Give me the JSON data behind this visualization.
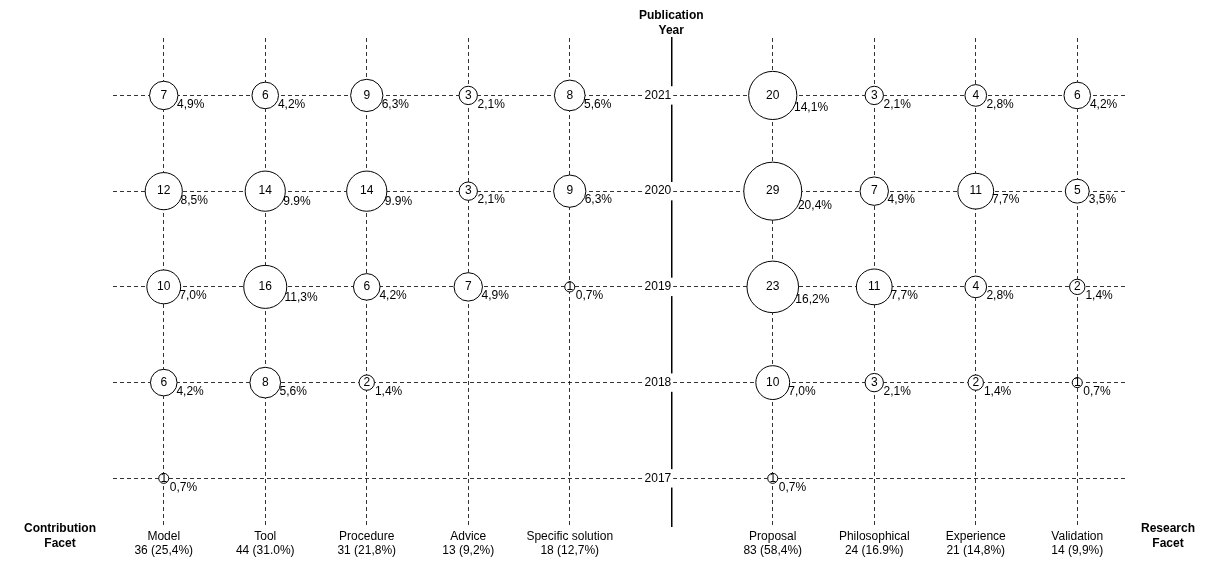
{
  "chart_data": {
    "type": "bubble",
    "xlabel": "Contribution Facet",
    "ylabel": "Publication Year",
    "categories": [
      "Model",
      "Tool",
      "Procedure",
      "Advice",
      "Specific solution",
      null,
      "Proposal",
      "Philosophical",
      "Experience",
      "Validation"
    ],
    "totals": [
      "36 (25,4%)",
      "44 (31.0%)",
      "31 (21,8%)",
      "13 (9,2%)",
      "18 (12,7%)",
      null,
      "83 (58,4%)",
      "24 (16.9%)",
      "21 (14,8%)",
      "14 (9,9%)"
    ],
    "ylim": [
      2016.5,
      2021.6
    ],
    "yticks": [
      2017,
      2018,
      2019,
      2020,
      2021
    ],
    "grid": true,
    "line_style": "dashed",
    "series": [
      {
        "color": "#000000",
        "x": [
          "Model",
          "Model",
          "Model",
          "Model",
          "Model",
          "Tool",
          "Tool",
          "Tool",
          "Tool",
          "Procedure",
          "Procedure",
          "Procedure",
          "Procedure",
          "Advice",
          "Advice",
          "Advice",
          "Specific solution",
          "Specific solution",
          "Specific solution",
          "Proposal",
          "Proposal",
          "Proposal",
          "Proposal",
          "Proposal",
          "Philosophical",
          "Philosophical",
          "Philosophical",
          "Philosophical",
          "Experience",
          "Experience",
          "Experience",
          "Experience",
          "Validation",
          "Validation",
          "Validation",
          "Validation"
        ],
        "values": [
          2021,
          2020,
          2019,
          2018,
          2017,
          2021,
          2020,
          2019,
          2018,
          2021,
          2020,
          2019,
          2018,
          2021,
          2020,
          2019,
          2021,
          2020,
          2019,
          2021,
          2020,
          2019,
          2018,
          2017,
          2021,
          2020,
          2019,
          2018,
          2021,
          2020,
          2019,
          2018,
          2021,
          2020,
          2019,
          2018
        ],
        "sizes": [
          0.24,
          0.41,
          0.34,
          0.21,
          0.03,
          0.21,
          0.48,
          0.55,
          0.28,
          0.31,
          0.48,
          0.21,
          0.07,
          0.1,
          0.1,
          0.24,
          0.28,
          0.31,
          0.03,
          0.69,
          1,
          0.79,
          0.34,
          0.03,
          0.1,
          0.24,
          0.38,
          0.1,
          0.14,
          0.38,
          0.14,
          0.07,
          0.21,
          0.17,
          0.07,
          0.03
        ]
      }
    ],
    "annotations": [
      "Research Facet",
      {
        "text": "7",
        "x": "Model",
        "y": 2021
      },
      {
        "text": "4,9%",
        "x": "Model",
        "y": 2021
      },
      {
        "text": "12",
        "x": "Model",
        "y": 2020
      },
      {
        "text": "8,5%",
        "x": "Model",
        "y": 2020
      },
      {
        "text": "10",
        "x": "Model",
        "y": 2019
      },
      {
        "text": "7,0%",
        "x": "Model",
        "y": 2019
      },
      {
        "text": "6",
        "x": "Model",
        "y": 2018
      },
      {
        "text": "4,2%",
        "x": "Model",
        "y": 2018
      },
      {
        "text": "1",
        "x": "Model",
        "y": 2017
      },
      {
        "text": "0,7%",
        "x": "Model",
        "y": 2017
      },
      {
        "text": "6",
        "x": "Tool",
        "y": 2021
      },
      {
        "text": "4,2%",
        "x": "Tool",
        "y": 2021
      },
      {
        "text": "14",
        "x": "Tool",
        "y": 2020
      },
      {
        "text": "9.9%",
        "x": "Tool",
        "y": 2020
      },
      {
        "text": "16",
        "x": "Tool",
        "y": 2019
      },
      {
        "text": "11,3%",
        "x": "Tool",
        "y": 2019
      },
      {
        "text": "8",
        "x": "Tool",
        "y": 2018
      },
      {
        "text": "5,6%",
        "x": "Tool",
        "y": 2018
      },
      {
        "text": "9",
        "x": "Procedure",
        "y": 2021
      },
      {
        "text": "6,3%",
        "x": "Procedure",
        "y": 2021
      },
      {
        "text": "14",
        "x": "Procedure",
        "y": 2020
      },
      {
        "text": "9.9%",
        "x": "Procedure",
        "y": 2020
      },
      {
        "text": "6",
        "x": "Procedure",
        "y": 2019
      },
      {
        "text": "4,2%",
        "x": "Procedure",
        "y": 2019
      },
      {
        "text": "2",
        "x": "Procedure",
        "y": 2018
      },
      {
        "text": "1,4%",
        "x": "Procedure",
        "y": 2018
      },
      {
        "text": "3",
        "x": "Advice",
        "y": 2021
      },
      {
        "text": "2,1%",
        "x": "Advice",
        "y": 2021
      },
      {
        "text": "3",
        "x": "Advice",
        "y": 2020
      },
      {
        "text": "2,1%",
        "x": "Advice",
        "y": 2020
      },
      {
        "text": "7",
        "x": "Advice",
        "y": 2019
      },
      {
        "text": "4,9%",
        "x": "Advice",
        "y": 2019
      },
      {
        "text": "8",
        "x": "Specific solution",
        "y": 2021
      },
      {
        "text": "5,6%",
        "x": "Specific solution",
        "y": 2021
      },
      {
        "text": "9",
        "x": "Specific solution",
        "y": 2020
      },
      {
        "text": "6,3%",
        "x": "Specific solution",
        "y": 2020
      },
      {
        "text": "1",
        "x": "Specific solution",
        "y": 2019
      },
      {
        "text": "0,7%",
        "x": "Specific solution",
        "y": 2019
      },
      {
        "text": "20",
        "x": "Proposal",
        "y": 2021
      },
      {
        "text": "14,1%",
        "x": "Proposal",
        "y": 2021
      },
      {
        "text": "29",
        "x": "Proposal",
        "y": 2020
      },
      {
        "text": "20,4%",
        "x": "Proposal",
        "y": 2020
      },
      {
        "text": "23",
        "x": "Proposal",
        "y": 2019
      },
      {
        "text": "16,2%",
        "x": "Proposal",
        "y": 2019
      },
      {
        "text": "10",
        "x": "Proposal",
        "y": 2018
      },
      {
        "text": "7,0%",
        "x": "Proposal",
        "y": 2018
      },
      {
        "text": "1",
        "x": "Proposal",
        "y": 2017
      },
      {
        "text": "0,7%",
        "x": "Proposal",
        "y": 2017
      },
      {
        "text": "3",
        "x": "Philosophical",
        "y": 2021
      },
      {
        "text": "2,1%",
        "x": "Philosophical",
        "y": 2021
      },
      {
        "text": "7",
        "x": "Philosophical",
        "y": 2020
      },
      {
        "text": "4,9%",
        "x": "Philosophical",
        "y": 2020
      },
      {
        "text": "11",
        "x": "Philosophical",
        "y": 2019
      },
      {
        "text": "7,7%",
        "x": "Philosophical",
        "y": 2019
      },
      {
        "text": "3",
        "x": "Philosophical",
        "y": 2018
      },
      {
        "text": "2,1%",
        "x": "Philosophical",
        "y": 2018
      },
      {
        "text": "4",
        "x": "Experience",
        "y": 2021
      },
      {
        "text": "2,8%",
        "x": "Experience",
        "y": 2021
      },
      {
        "text": "11",
        "x": "Experience",
        "y": 2020
      },
      {
        "text": "7,7%",
        "x": "Experience",
        "y": 2020
      },
      {
        "text": "4",
        "x": "Experience",
        "y": 2019
      },
      {
        "text": "2,8%",
        "x": "Experience",
        "y": 2019
      },
      {
        "text": "2",
        "x": "Experience",
        "y": 2018
      },
      {
        "text": "1,4%",
        "x": "Experience",
        "y": 2018
      },
      {
        "text": "6",
        "x": "Validation",
        "y": 2021
      },
      {
        "text": "4,2%",
        "x": "Validation",
        "y": 2021
      },
      {
        "text": "5",
        "x": "Validation",
        "y": 2020
      },
      {
        "text": "3,5%",
        "x": "Validation",
        "y": 2020
      },
      {
        "text": "2",
        "x": "Validation",
        "y": 2019
      },
      {
        "text": "1,4%",
        "x": "Validation",
        "y": 2019
      },
      {
        "text": "1",
        "x": "Validation",
        "y": 2018
      },
      {
        "text": "0,7%",
        "x": "Validation",
        "y": 2018
      }
    ]
  }
}
